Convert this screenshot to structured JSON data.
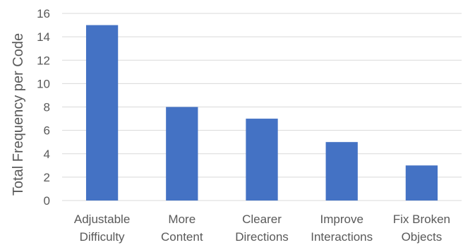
{
  "chart_data": {
    "type": "bar",
    "title": "",
    "xlabel": "",
    "ylabel": "Total Frequency per Code",
    "categories": [
      [
        "Adjustable",
        "Difficulty"
      ],
      [
        "More",
        "Content"
      ],
      [
        "Clearer",
        "Directions"
      ],
      [
        "Improve",
        "Interactions"
      ],
      [
        "Fix Broken",
        "Objects"
      ]
    ],
    "values": [
      15,
      8,
      7,
      5,
      3
    ],
    "ylim": [
      0,
      16
    ],
    "yticks": [
      0,
      2,
      4,
      6,
      8,
      10,
      12,
      14,
      16
    ],
    "grid": true,
    "legend": "none",
    "bar_color": "#4472C4",
    "grid_color": "#D9D9D9",
    "text_color": "#595959"
  }
}
